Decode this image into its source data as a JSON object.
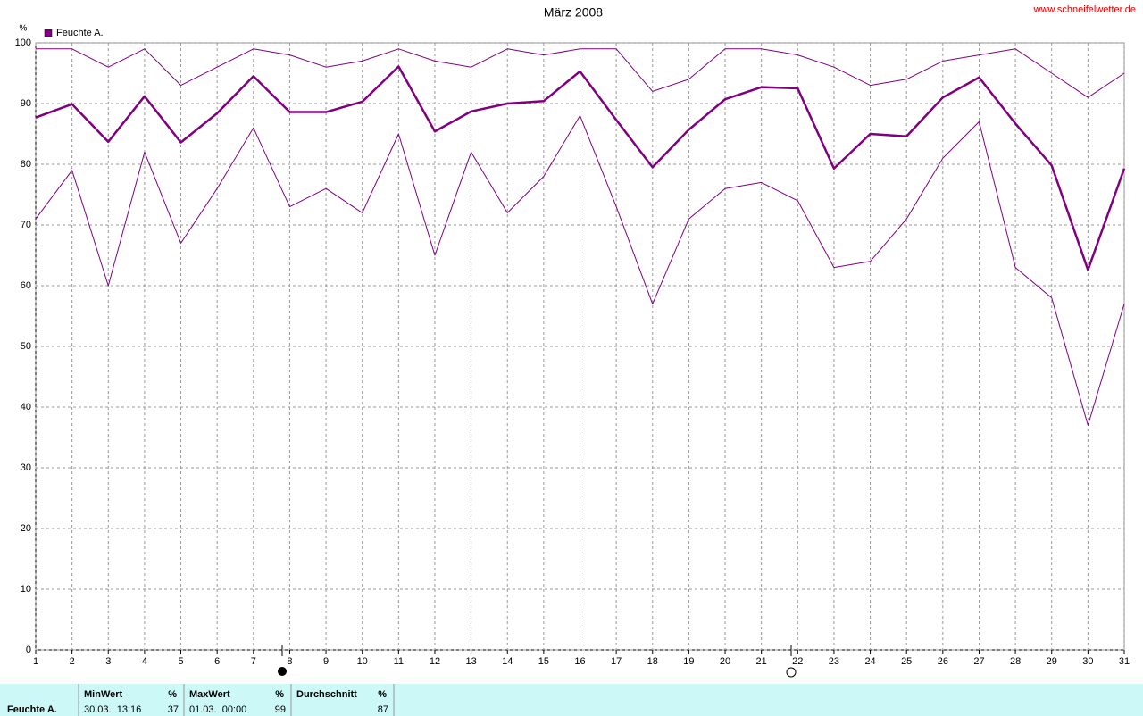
{
  "chart_data": {
    "type": "line",
    "title": "März 2008",
    "source": "www.schneifelwetter.de",
    "y_unit": "%",
    "x": [
      1,
      2,
      3,
      4,
      5,
      6,
      7,
      8,
      9,
      10,
      11,
      12,
      13,
      14,
      15,
      16,
      17,
      18,
      19,
      20,
      21,
      22,
      23,
      24,
      25,
      26,
      27,
      28,
      29,
      30,
      31
    ],
    "xlim": [
      1,
      31
    ],
    "xticks": [
      1,
      2,
      3,
      4,
      5,
      6,
      7,
      8,
      9,
      10,
      11,
      12,
      13,
      14,
      15,
      16,
      17,
      18,
      19,
      20,
      21,
      22,
      23,
      24,
      25,
      26,
      27,
      28,
      29,
      30,
      31
    ],
    "ylim": [
      0,
      100
    ],
    "yticks": [
      0,
      10,
      20,
      30,
      40,
      50,
      60,
      70,
      80,
      90,
      100
    ],
    "grid": true,
    "legend": "upper left",
    "series": [
      {
        "color": "#800080",
        "linewidth": 1,
        "values": [
          99,
          99,
          96,
          99,
          93,
          96,
          99,
          98,
          96,
          97,
          99,
          97,
          96,
          99,
          98,
          99,
          99,
          92,
          94,
          99,
          99,
          98,
          96,
          93,
          94,
          97,
          98,
          99,
          95,
          91,
          95
        ]
      },
      {
        "name": "Feuchte A.",
        "color": "#800080",
        "linewidth": 2.5,
        "values": [
          87.7,
          89.9,
          83.7,
          91.2,
          83.6,
          88.4,
          94.5,
          88.6,
          88.6,
          90.3,
          96.1,
          85.4,
          88.7,
          90.0,
          90.4,
          95.3,
          87.3,
          79.5,
          85.7,
          90.7,
          92.7,
          92.5,
          79.3,
          85.0,
          84.6,
          91.0,
          94.3,
          86.7,
          79.8,
          62.6,
          79.3
        ]
      },
      {
        "color": "#800080",
        "linewidth": 1,
        "values": [
          71,
          79,
          60,
          82,
          67,
          76,
          86,
          73,
          76,
          72,
          85,
          65,
          82,
          72,
          78,
          88,
          73,
          57,
          71,
          76,
          77,
          74,
          63,
          64,
          71,
          81,
          87,
          63,
          58,
          37,
          57
        ]
      }
    ]
  },
  "summary": {
    "row_label": "Feuchte A.",
    "columns": [
      {
        "header": "MinWert",
        "unit": "%",
        "time": "30.03.  13:16",
        "value": 37
      },
      {
        "header": "MaxWert",
        "unit": "%",
        "time": "01.03.  00:00",
        "value": 99
      },
      {
        "header": "Durchschnitt",
        "unit": "%",
        "value": 87
      }
    ]
  }
}
